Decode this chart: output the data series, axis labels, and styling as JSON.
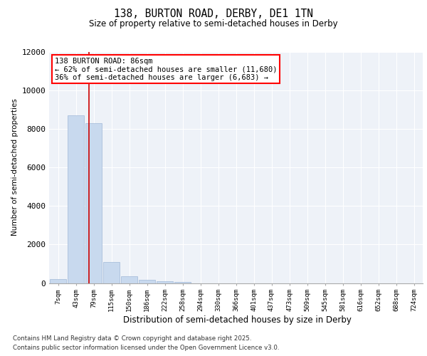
{
  "title_line1": "138, BURTON ROAD, DERBY, DE1 1TN",
  "title_line2": "Size of property relative to semi-detached houses in Derby",
  "xlabel": "Distribution of semi-detached houses by size in Derby",
  "ylabel": "Number of semi-detached properties",
  "categories": [
    "7sqm",
    "43sqm",
    "79sqm",
    "115sqm",
    "150sqm",
    "186sqm",
    "222sqm",
    "258sqm",
    "294sqm",
    "330sqm",
    "366sqm",
    "401sqm",
    "437sqm",
    "473sqm",
    "509sqm",
    "545sqm",
    "581sqm",
    "616sqm",
    "652sqm",
    "688sqm",
    "724sqm"
  ],
  "values": [
    200,
    8700,
    8300,
    1100,
    350,
    150,
    100,
    50,
    0,
    0,
    0,
    0,
    0,
    0,
    0,
    0,
    0,
    0,
    0,
    0,
    0
  ],
  "bar_color": "#c8d9ee",
  "bar_edge_color": "#a0b8d8",
  "red_line_x": 1.72,
  "annotation_title": "138 BURTON ROAD: 86sqm",
  "annotation_line1": "← 62% of semi-detached houses are smaller (11,680)",
  "annotation_line2": "36% of semi-detached houses are larger (6,683) →",
  "ylim": [
    0,
    12000
  ],
  "yticks": [
    0,
    2000,
    4000,
    6000,
    8000,
    10000,
    12000
  ],
  "footer_line1": "Contains HM Land Registry data © Crown copyright and database right 2025.",
  "footer_line2": "Contains public sector information licensed under the Open Government Licence v3.0.",
  "bg_color": "#eef2f8",
  "grid_color": "#ffffff"
}
